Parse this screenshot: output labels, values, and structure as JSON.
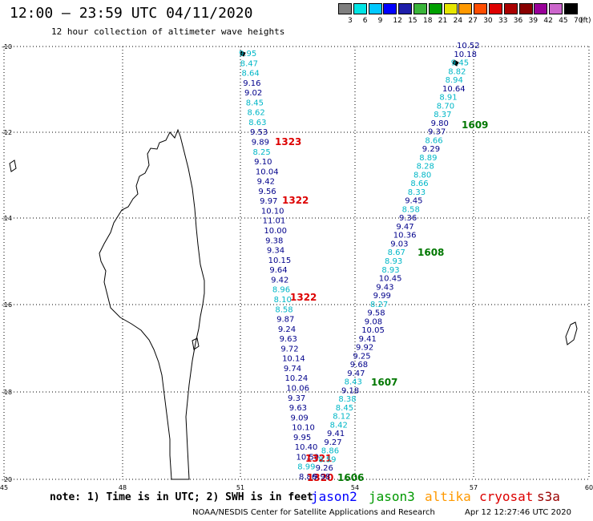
{
  "title": "12:00 – 23:59 UTC 04/11/2020",
  "subtitle": "12 hour collection of altimeter wave heights",
  "colorbar": {
    "labels": [
      "3",
      "6",
      "9",
      "12",
      "15",
      "18",
      "21",
      "24",
      "27",
      "30",
      "33",
      "36",
      "39",
      "42",
      "45",
      "70"
    ],
    "unit": "(ft)",
    "colors": [
      "#7f7f7f",
      "#00e5e5",
      "#00c8ff",
      "#0000ff",
      "#1e1eaa",
      "#3ab53a",
      "#00a000",
      "#e6e600",
      "#ff9900",
      "#ff4d00",
      "#dd0000",
      "#aa0000",
      "#880000",
      "#990099",
      "#cc66cc",
      "#000000"
    ]
  },
  "axes": {
    "x_ticks": [
      "45",
      "48",
      "51",
      "54",
      "57",
      "60"
    ],
    "y_ticks": [
      "-10",
      "-12",
      "-14",
      "-16",
      "-18",
      "-20"
    ]
  },
  "track_west": {
    "values": [
      "9.95",
      "8.47",
      "8.64",
      "9.16",
      "9.02",
      "8.45",
      "8.62",
      "8.63",
      "9.53",
      "9.89",
      "8.25",
      "9.10",
      "10.04",
      "9.42",
      "9.56",
      "9.97",
      "10.10",
      "11.01",
      "10.00",
      "9.38",
      "9.34",
      "10.15",
      "9.64",
      "9.42",
      "8.96",
      "8.10",
      "8.58",
      "9.87",
      "9.24",
      "9.63",
      "9.72",
      "10.14",
      "9.74",
      "10.24",
      "10.06",
      "9.37",
      "9.63",
      "9.09",
      "10.10",
      "9.95",
      "10.40",
      "10.59",
      "8.99",
      "8.86"
    ],
    "colors": [
      "#00b7c7",
      "#00b7c7",
      "#00b7c7",
      "#00008b",
      "#00008b",
      "#00b7c7",
      "#00b7c7",
      "#00b7c7",
      "#00008b",
      "#00008b",
      "#00b7c7",
      "#00008b",
      "#00008b",
      "#00008b",
      "#00008b",
      "#00008b",
      "#00008b",
      "#00008b",
      "#00008b",
      "#00008b",
      "#00008b",
      "#00008b",
      "#00008b",
      "#00008b",
      "#00b7c7",
      "#00b7c7",
      "#00b7c7",
      "#00008b",
      "#00008b",
      "#00008b",
      "#00008b",
      "#00008b",
      "#00008b",
      "#00008b",
      "#00008b",
      "#00008b",
      "#00008b",
      "#00008b",
      "#00008b",
      "#00008b",
      "#00008b",
      "#00008b",
      "#00b7c7",
      "#00008b"
    ],
    "time_labels": [
      "1323",
      "1322",
      "1322",
      "1321",
      "1320"
    ]
  },
  "track_east": {
    "values": [
      "10.52",
      "10.18",
      "9.45",
      "8.82",
      "8.94",
      "10.64",
      "8.91",
      "8.70",
      "8.37",
      "9.80",
      "9.37",
      "8.66",
      "9.29",
      "8.89",
      "8.28",
      "8.80",
      "8.66",
      "8.33",
      "9.45",
      "8.58",
      "9.36",
      "9.47",
      "10.36",
      "9.03",
      "8.67",
      "8.93",
      "8.93",
      "10.45",
      "9.43",
      "9.99",
      "8.27",
      "9.58",
      "9.08",
      "10.05",
      "9.41",
      "9.92",
      "9.25",
      "9.68",
      "9.47",
      "8.43",
      "9.18",
      "8.38",
      "8.45",
      "8.12",
      "8.42",
      "9.41",
      "9.27",
      "8.86",
      "8.59",
      "9.26",
      "9.98"
    ],
    "colors": [
      "#00008b",
      "#00008b",
      "#00b7c7",
      "#00b7c7",
      "#00b7c7",
      "#00008b",
      "#00b7c7",
      "#00b7c7",
      "#00b7c7",
      "#00008b",
      "#00008b",
      "#00b7c7",
      "#00008b",
      "#00b7c7",
      "#00b7c7",
      "#00b7c7",
      "#00b7c7",
      "#00b7c7",
      "#00008b",
      "#00b7c7",
      "#00008b",
      "#00008b",
      "#00008b",
      "#00008b",
      "#00b7c7",
      "#00b7c7",
      "#00b7c7",
      "#00008b",
      "#00008b",
      "#00008b",
      "#00b7c7",
      "#00008b",
      "#00008b",
      "#00008b",
      "#00008b",
      "#00008b",
      "#00008b",
      "#00008b",
      "#00008b",
      "#00b7c7",
      "#00008b",
      "#00b7c7",
      "#00b7c7",
      "#00b7c7",
      "#00b7c7",
      "#00008b",
      "#00008b",
      "#00b7c7",
      "#00b7c7",
      "#00008b",
      "#00008b"
    ],
    "time_labels": [
      "1609",
      "1608",
      "1607",
      "1606"
    ]
  },
  "note": "note: 1) Time is in UTC; 2) SWH is in feet",
  "missions": [
    {
      "name": "jason2",
      "color": "#0000ff"
    },
    {
      "name": "jason3",
      "color": "#009900"
    },
    {
      "name": "altika",
      "color": "#ff9900"
    },
    {
      "name": "cryosat",
      "color": "#dd0000"
    },
    {
      "name": "s3a",
      "color": "#990000"
    }
  ],
  "credit": "NOAA/NESDIS Center for Satellite Applications and Research",
  "timestamp": "Apr 12 12:27:46 UTC 2020"
}
